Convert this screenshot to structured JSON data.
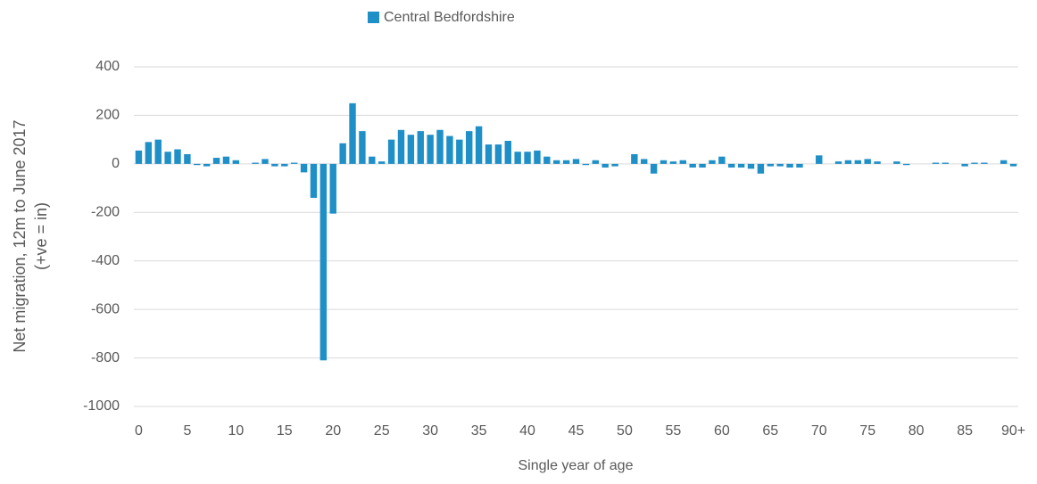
{
  "chart_data": {
    "type": "bar",
    "legend": "Central Bedfordshire",
    "color": "#1f8fc8",
    "xlabel": "Single year of age",
    "ylabel": [
      "Net migration, 12m to June 2017",
      "(+ve = in)"
    ],
    "categories": [
      "0",
      null,
      null,
      null,
      null,
      "5",
      null,
      null,
      null,
      null,
      "10",
      null,
      null,
      null,
      null,
      "15",
      null,
      null,
      null,
      null,
      "20",
      null,
      null,
      null,
      null,
      "25",
      null,
      null,
      null,
      null,
      "30",
      null,
      null,
      null,
      null,
      "35",
      null,
      null,
      null,
      null,
      "40",
      null,
      null,
      null,
      null,
      "45",
      null,
      null,
      null,
      null,
      "50",
      null,
      null,
      null,
      null,
      "55",
      null,
      null,
      null,
      null,
      "60",
      null,
      null,
      null,
      null,
      "65",
      null,
      null,
      null,
      null,
      "70",
      null,
      null,
      null,
      null,
      "75",
      null,
      null,
      null,
      null,
      "80",
      null,
      null,
      null,
      null,
      "85",
      null,
      null,
      null,
      null,
      "90+"
    ],
    "values": [
      55,
      90,
      100,
      50,
      60,
      40,
      -5,
      -10,
      25,
      30,
      15,
      0,
      5,
      20,
      -10,
      -10,
      5,
      -35,
      -140,
      -810,
      -205,
      85,
      250,
      135,
      30,
      10,
      100,
      140,
      120,
      135,
      120,
      140,
      115,
      100,
      135,
      155,
      80,
      80,
      95,
      50,
      50,
      55,
      30,
      15,
      15,
      20,
      -5,
      15,
      -15,
      -10,
      0,
      40,
      20,
      -40,
      15,
      10,
      15,
      -15,
      -15,
      15,
      30,
      -15,
      -15,
      -20,
      -40,
      -10,
      -10,
      -15,
      -15,
      0,
      35,
      0,
      10,
      15,
      15,
      20,
      10,
      0,
      10,
      -5,
      0,
      0,
      5,
      5,
      0,
      -10,
      5,
      5,
      0,
      15,
      -10
    ],
    "ylim": [
      -1000,
      400
    ],
    "yticks": [
      -1000,
      -800,
      -600,
      -400,
      -200,
      0,
      200,
      400
    ],
    "grid": true
  }
}
